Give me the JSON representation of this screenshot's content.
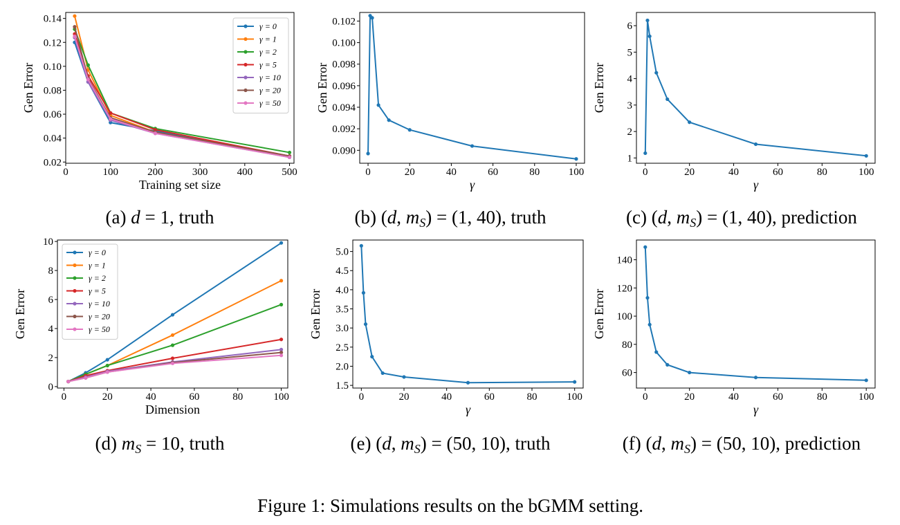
{
  "figure_caption": "Figure 1: Simulations results on the bGMM setting.",
  "chart_data": [
    {
      "id": "a",
      "type": "line",
      "caption": "(a) d = 1, truth",
      "xlabel": "Training set size",
      "ylabel": "Gen Error",
      "xlim": [
        0,
        510
      ],
      "ylim": [
        0.019,
        0.145
      ],
      "xticks": [
        0,
        100,
        200,
        300,
        400,
        500
      ],
      "xtick_labels": [
        "0",
        "100",
        "200",
        "300",
        "400",
        "500"
      ],
      "yticks": [
        0.02,
        0.04,
        0.06,
        0.08,
        0.1,
        0.12,
        0.14
      ],
      "ytick_labels": [
        "0.02",
        "0.04",
        "0.06",
        "0.08",
        "0.10",
        "0.12",
        "0.14"
      ],
      "legend": "top-right",
      "x": [
        20,
        50,
        100,
        200,
        500
      ],
      "series": [
        {
          "name": "γ = 0",
          "color": "#1f77b4",
          "values": [
            0.12,
            0.087,
            0.053,
            0.046,
            0.024
          ]
        },
        {
          "name": "γ = 1",
          "color": "#ff7f0e",
          "values": [
            0.142,
            0.097,
            0.059,
            0.045,
            0.025
          ]
        },
        {
          "name": "γ = 2",
          "color": "#2ca02c",
          "values": [
            0.131,
            0.101,
            0.061,
            0.048,
            0.028
          ]
        },
        {
          "name": "γ = 5",
          "color": "#d62728",
          "values": [
            0.127,
            0.092,
            0.061,
            0.047,
            0.025
          ]
        },
        {
          "name": "γ = 10",
          "color": "#9467bd",
          "values": [
            0.124,
            0.087,
            0.055,
            0.044,
            0.024
          ]
        },
        {
          "name": "γ = 20",
          "color": "#8c564b",
          "values": [
            0.133,
            0.09,
            0.057,
            0.045,
            0.025
          ]
        },
        {
          "name": "γ = 50",
          "color": "#e377c2",
          "values": [
            0.125,
            0.089,
            0.056,
            0.044,
            0.024
          ]
        }
      ]
    },
    {
      "id": "b",
      "type": "line",
      "caption": "(b) (d, mS) = (1, 40), truth",
      "xlabel": "γ",
      "ylabel": "Gen Error",
      "xlim": [
        -4,
        104
      ],
      "ylim": [
        0.0888,
        0.1028
      ],
      "xticks": [
        0,
        20,
        40,
        60,
        80,
        100
      ],
      "xtick_labels": [
        "0",
        "20",
        "40",
        "60",
        "80",
        "100"
      ],
      "yticks": [
        0.09,
        0.092,
        0.094,
        0.096,
        0.098,
        0.1,
        0.102
      ],
      "ytick_labels": [
        "0.090",
        "0.092",
        "0.094",
        "0.096",
        "0.098",
        "0.100",
        "0.102"
      ],
      "x": [
        0,
        1,
        2,
        5,
        10,
        20,
        50,
        100
      ],
      "series": [
        {
          "name": "gen error",
          "color": "#1f77b4",
          "values": [
            0.0897,
            0.1025,
            0.1023,
            0.0942,
            0.0928,
            0.0919,
            0.0904,
            0.0892
          ]
        }
      ]
    },
    {
      "id": "c",
      "type": "line",
      "caption": "(c) (d, mS) = (1, 40), prediction",
      "xlabel": "γ",
      "ylabel": "Gen Error",
      "xlim": [
        -4,
        104
      ],
      "ylim": [
        0.8,
        6.5
      ],
      "xticks": [
        0,
        20,
        40,
        60,
        80,
        100
      ],
      "xtick_labels": [
        "0",
        "20",
        "40",
        "60",
        "80",
        "100"
      ],
      "yticks": [
        1,
        2,
        3,
        4,
        5,
        6
      ],
      "ytick_labels": [
        "1",
        "2",
        "3",
        "4",
        "5",
        "6"
      ],
      "x": [
        0,
        1,
        2,
        5,
        10,
        20,
        50,
        100
      ],
      "series": [
        {
          "name": "gen error",
          "color": "#1f77b4",
          "values": [
            1.18,
            6.2,
            5.6,
            4.22,
            3.22,
            2.35,
            1.52,
            1.08
          ]
        }
      ]
    },
    {
      "id": "d",
      "type": "line",
      "caption": "(d) mS = 10, truth",
      "xlabel": "Dimension",
      "ylabel": "Gen Error",
      "xlim": [
        -3,
        103
      ],
      "ylim": [
        -0.1,
        10.1
      ],
      "xticks": [
        0,
        20,
        40,
        60,
        80,
        100
      ],
      "xtick_labels": [
        "0",
        "20",
        "40",
        "60",
        "80",
        "100"
      ],
      "yticks": [
        0,
        2,
        4,
        6,
        8,
        10
      ],
      "ytick_labels": [
        "0",
        "2",
        "4",
        "6",
        "8",
        "10"
      ],
      "legend": "top-left",
      "x": [
        2,
        10,
        20,
        50,
        100
      ],
      "series": [
        {
          "name": "γ = 0",
          "color": "#1f77b4",
          "values": [
            0.35,
            0.95,
            1.85,
            4.95,
            9.9
          ]
        },
        {
          "name": "γ = 1",
          "color": "#ff7f0e",
          "values": [
            0.35,
            0.85,
            1.45,
            3.55,
            7.3
          ]
        },
        {
          "name": "γ = 2",
          "color": "#2ca02c",
          "values": [
            0.35,
            0.85,
            1.45,
            2.85,
            5.65
          ]
        },
        {
          "name": "γ = 5",
          "color": "#d62728",
          "values": [
            0.35,
            0.75,
            1.1,
            1.95,
            3.25
          ]
        },
        {
          "name": "γ = 10",
          "color": "#9467bd",
          "values": [
            0.35,
            0.65,
            1.05,
            1.7,
            2.55
          ]
        },
        {
          "name": "γ = 20",
          "color": "#8c564b",
          "values": [
            0.35,
            0.6,
            1.0,
            1.65,
            2.35
          ]
        },
        {
          "name": "γ = 50",
          "color": "#e377c2",
          "values": [
            0.35,
            0.6,
            1.0,
            1.6,
            2.15
          ]
        }
      ]
    },
    {
      "id": "e",
      "type": "line",
      "caption": "(e) (d, mS) = (50, 10), truth",
      "xlabel": "γ",
      "ylabel": "Gen Error",
      "xlim": [
        -4,
        104
      ],
      "ylim": [
        1.43,
        5.3
      ],
      "xticks": [
        0,
        20,
        40,
        60,
        80,
        100
      ],
      "xtick_labels": [
        "0",
        "20",
        "40",
        "60",
        "80",
        "100"
      ],
      "yticks": [
        1.5,
        2.0,
        2.5,
        3.0,
        3.5,
        4.0,
        4.5,
        5.0
      ],
      "ytick_labels": [
        "1.5",
        "2.0",
        "2.5",
        "3.0",
        "3.5",
        "4.0",
        "4.5",
        "5.0"
      ],
      "x": [
        0,
        1,
        2,
        5,
        10,
        20,
        50,
        100
      ],
      "series": [
        {
          "name": "gen error",
          "color": "#1f77b4",
          "values": [
            5.15,
            3.92,
            3.1,
            2.25,
            1.82,
            1.72,
            1.57,
            1.59
          ]
        }
      ]
    },
    {
      "id": "f",
      "type": "line",
      "caption": "(f) (d, mS) = (50, 10), prediction",
      "xlabel": "γ",
      "ylabel": "Gen Error",
      "xlim": [
        -4,
        104
      ],
      "ylim": [
        49,
        154
      ],
      "xticks": [
        0,
        20,
        40,
        60,
        80,
        100
      ],
      "xtick_labels": [
        "0",
        "20",
        "40",
        "60",
        "80",
        "100"
      ],
      "yticks": [
        60,
        80,
        100,
        120,
        140
      ],
      "ytick_labels": [
        "60",
        "80",
        "100",
        "120",
        "140"
      ],
      "x": [
        0,
        1,
        2,
        5,
        10,
        20,
        50,
        100
      ],
      "series": [
        {
          "name": "gen error",
          "color": "#1f77b4",
          "values": [
            149,
            113,
            94,
            74.5,
            65.5,
            60,
            56.5,
            54.5
          ]
        }
      ]
    }
  ]
}
